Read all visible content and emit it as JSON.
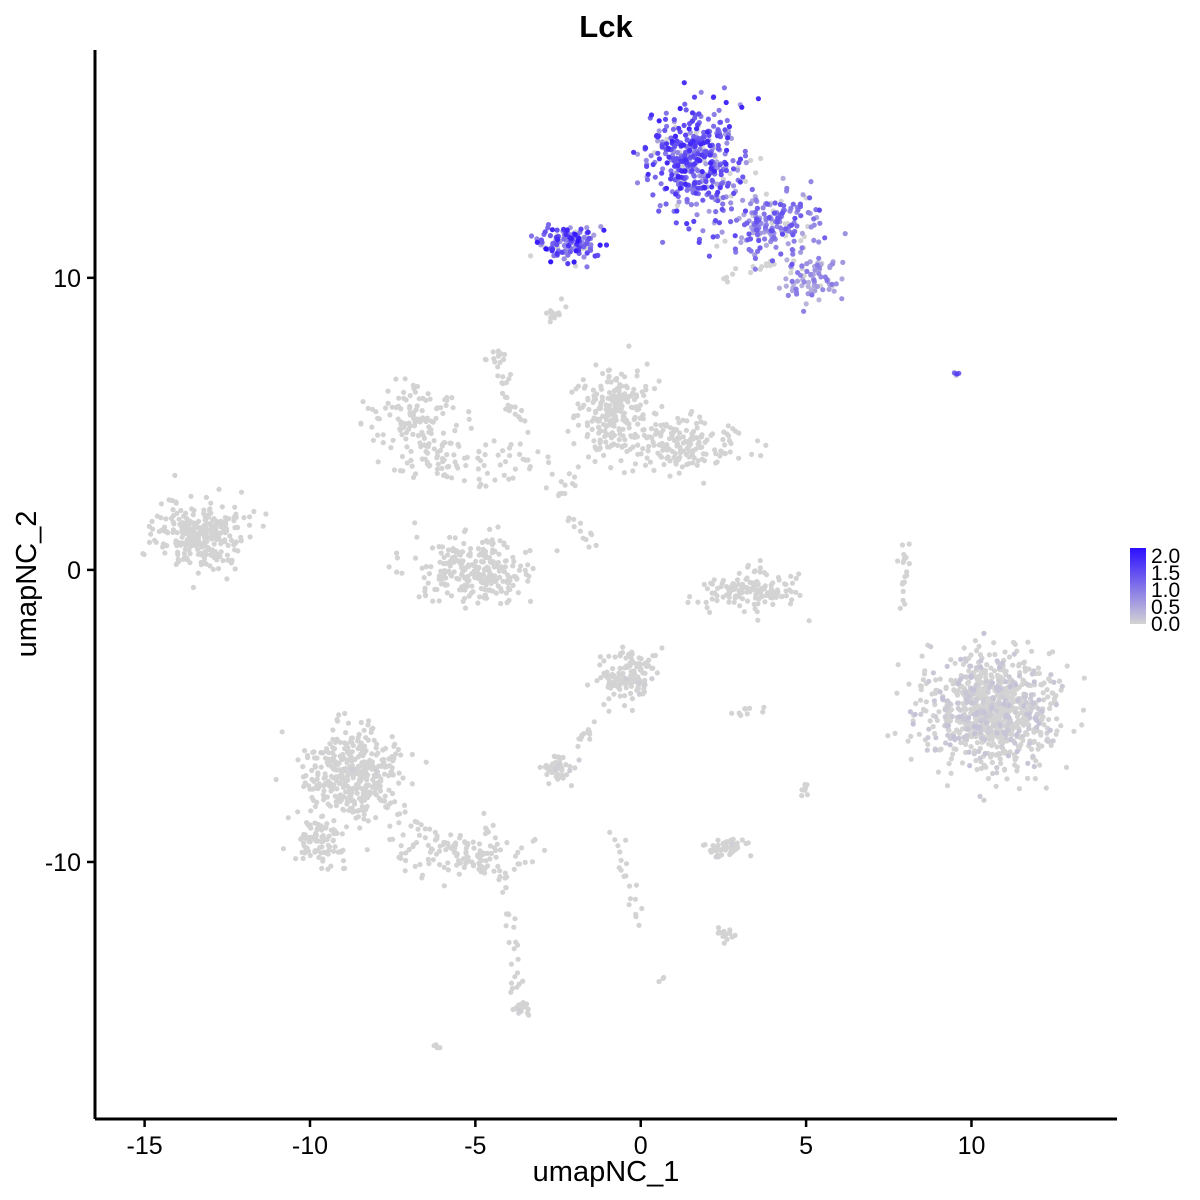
{
  "chart_data": {
    "type": "scatter",
    "title": "Lck",
    "xlabel": "umapNC_1",
    "ylabel": "umapNC_2",
    "xlim": [
      -16.5,
      14.4
    ],
    "ylim": [
      -18.8,
      17.8
    ],
    "xticks": [
      -15,
      -10,
      -5,
      0,
      5,
      10
    ],
    "yticks": [
      -10,
      0,
      10
    ],
    "grid": false,
    "color_scale": {
      "low_color": "#d3d3d3",
      "high_color": "#2d0fff",
      "range": [
        0,
        2.0
      ],
      "ticks": [
        "2.0",
        "1.5",
        "1.0",
        "0.5",
        "0.0"
      ]
    },
    "legend_position": "right",
    "clusters": [
      {
        "x": 1.6,
        "y": 14.2,
        "sx": 0.9,
        "sy": 1.1,
        "n": 420,
        "expr": 1.2
      },
      {
        "x": 3.8,
        "y": 11.9,
        "sx": 1.1,
        "sy": 0.8,
        "n": 200,
        "expr": 0.95
      },
      {
        "x": -2.2,
        "y": 11.2,
        "sx": 0.7,
        "sy": 0.45,
        "n": 130,
        "expr": 1.3
      },
      {
        "x": 5.2,
        "y": 10.0,
        "sx": 0.7,
        "sy": 0.55,
        "n": 80,
        "expr": 0.65
      },
      {
        "x": -0.8,
        "y": 5.5,
        "sx": 0.7,
        "sy": 0.9,
        "n": 220,
        "expr": 0
      },
      {
        "x": 1.2,
        "y": 4.3,
        "sx": 1.3,
        "sy": 0.6,
        "n": 180,
        "expr": 0
      },
      {
        "x": -6.8,
        "y": 5.2,
        "sx": 0.9,
        "sy": 0.7,
        "n": 110,
        "expr": 0
      },
      {
        "x": -5.3,
        "y": 3.7,
        "sx": 1.5,
        "sy": 0.55,
        "n": 90,
        "expr": 0
      },
      {
        "x": -5.0,
        "y": 0.0,
        "sx": 1.2,
        "sy": 0.75,
        "n": 260,
        "expr": 0
      },
      {
        "x": -13.3,
        "y": 1.2,
        "sx": 0.9,
        "sy": 0.75,
        "n": 300,
        "expr": 0
      },
      {
        "x": 3.3,
        "y": -0.7,
        "sx": 1.0,
        "sy": 0.45,
        "n": 140,
        "expr": 0
      },
      {
        "x": 10.6,
        "y": -4.8,
        "sx": 1.25,
        "sy": 1.25,
        "n": 900,
        "expr": 0.12
      },
      {
        "x": -0.4,
        "y": -3.6,
        "sx": 0.55,
        "sy": 0.55,
        "n": 130,
        "expr": 0.03
      },
      {
        "x": -8.7,
        "y": -7.0,
        "sx": 1.0,
        "sy": 1.0,
        "n": 420,
        "expr": 0.003
      },
      {
        "x": -9.7,
        "y": -9.3,
        "sx": 0.5,
        "sy": 0.45,
        "n": 90,
        "expr": 0
      },
      {
        "x": -5.5,
        "y": -9.7,
        "sx": 1.4,
        "sy": 0.55,
        "n": 120,
        "expr": 0
      },
      {
        "x": 2.5,
        "y": -9.5,
        "sx": 0.4,
        "sy": 0.2,
        "n": 60,
        "expr": 0.02
      },
      {
        "x": -2.5,
        "y": -6.8,
        "sx": 0.35,
        "sy": 0.25,
        "n": 45,
        "expr": 0.02
      },
      {
        "x": 2.5,
        "y": -12.5,
        "sx": 0.25,
        "sy": 0.2,
        "n": 18,
        "expr": 0
      },
      {
        "x": -3.6,
        "y": -15.0,
        "sx": 0.2,
        "sy": 0.25,
        "n": 15,
        "expr": 0.03
      },
      {
        "x": -2.7,
        "y": 8.8,
        "sx": 0.2,
        "sy": 0.15,
        "n": 10,
        "expr": 0
      },
      {
        "x": -4.4,
        "y": 7.3,
        "sx": 0.2,
        "sy": 0.3,
        "n": 12,
        "expr": 0
      },
      {
        "x": 9.6,
        "y": 6.7,
        "sx": 0.12,
        "sy": 0.08,
        "n": 4,
        "expr": 1.2
      },
      {
        "x": 8.0,
        "y": 0.2,
        "sx": 0.15,
        "sy": 0.5,
        "n": 12,
        "expr": 0
      },
      {
        "x": 3.2,
        "y": -4.8,
        "sx": 0.3,
        "sy": 0.1,
        "n": 10,
        "expr": 0
      },
      {
        "x": 5.0,
        "y": -7.5,
        "sx": 0.1,
        "sy": 0.2,
        "n": 8,
        "expr": 0
      },
      {
        "x": -6.1,
        "y": -16.3,
        "sx": 0.1,
        "sy": 0.1,
        "n": 4,
        "expr": 0
      },
      {
        "x": 0.7,
        "y": -14.0,
        "sx": 0.1,
        "sy": 0.1,
        "n": 3,
        "expr": 0
      }
    ],
    "paths": [
      {
        "from": [
          -4.5,
          6.8
        ],
        "to": [
          -2.2,
          2.5
        ],
        "n": 20
      },
      {
        "from": [
          -2.5,
          2.5
        ],
        "to": [
          -0.8,
          5.0
        ],
        "n": 15
      },
      {
        "from": [
          -2.2,
          1.8
        ],
        "to": [
          -1.2,
          0.8
        ],
        "n": 12
      },
      {
        "from": [
          -1.0,
          -4.5
        ],
        "to": [
          -1.9,
          -6.0
        ],
        "n": 16
      },
      {
        "from": [
          -7.6,
          -8.2
        ],
        "to": [
          -4.2,
          -10.4
        ],
        "n": 30
      },
      {
        "from": [
          -4.2,
          -10.4
        ],
        "to": [
          -3.6,
          -15.0
        ],
        "n": 28
      },
      {
        "from": [
          -0.8,
          -9.0
        ],
        "to": [
          0.0,
          -12.0
        ],
        "n": 20
      },
      {
        "from": [
          8.1,
          0.8
        ],
        "to": [
          7.9,
          -1.6
        ],
        "n": 8
      },
      {
        "from": [
          2.3,
          9.9
        ],
        "to": [
          4.2,
          10.6
        ],
        "n": 14
      },
      {
        "from": [
          -2.0,
          9.6
        ],
        "to": [
          -2.9,
          8.2
        ],
        "n": 6
      },
      {
        "from": [
          -3.8,
          5.1
        ],
        "to": [
          -4.4,
          8.0
        ],
        "n": 10
      }
    ]
  }
}
